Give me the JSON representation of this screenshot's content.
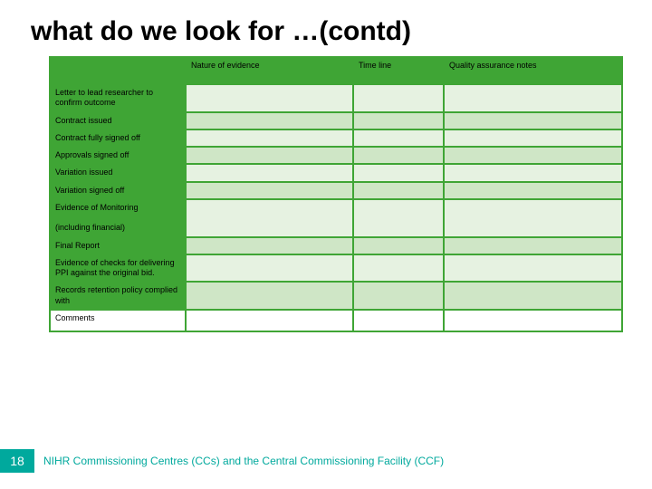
{
  "title": "what do we look for …(contd)",
  "page_number": "18",
  "footer_text": "NIHR Commissioning Centres (CCs) and the Central Commissioning Facility (CCF)",
  "colors": {
    "table_green": "#3fa535",
    "cell_light": "#e6f2e1",
    "cell_alt": "#cfe6c6",
    "accent_teal": "#00a99d",
    "white": "#ffffff"
  },
  "header_cells": [
    "",
    "Nature of evidence",
    "Time line",
    "Quality assurance notes"
  ],
  "rows": [
    {
      "label": "Letter to lead researcher to confirm outcome",
      "alt": false
    },
    {
      "label": "Contract issued",
      "alt": true
    },
    {
      "label": "Contract fully signed off",
      "alt": false
    },
    {
      "label": "Approvals signed off",
      "alt": true
    },
    {
      "label": "Variation issued",
      "alt": false
    },
    {
      "label": "Variation signed off",
      "alt": true
    },
    {
      "label": "Evidence of Monitoring\n\n(including financial)",
      "alt": false
    },
    {
      "label": "Final Report",
      "alt": true
    },
    {
      "label": "Evidence of checks for delivering PPI against the original bid.",
      "alt": false
    },
    {
      "label": "Records retention policy complied with",
      "alt": true
    }
  ],
  "comments_label": "Comments"
}
